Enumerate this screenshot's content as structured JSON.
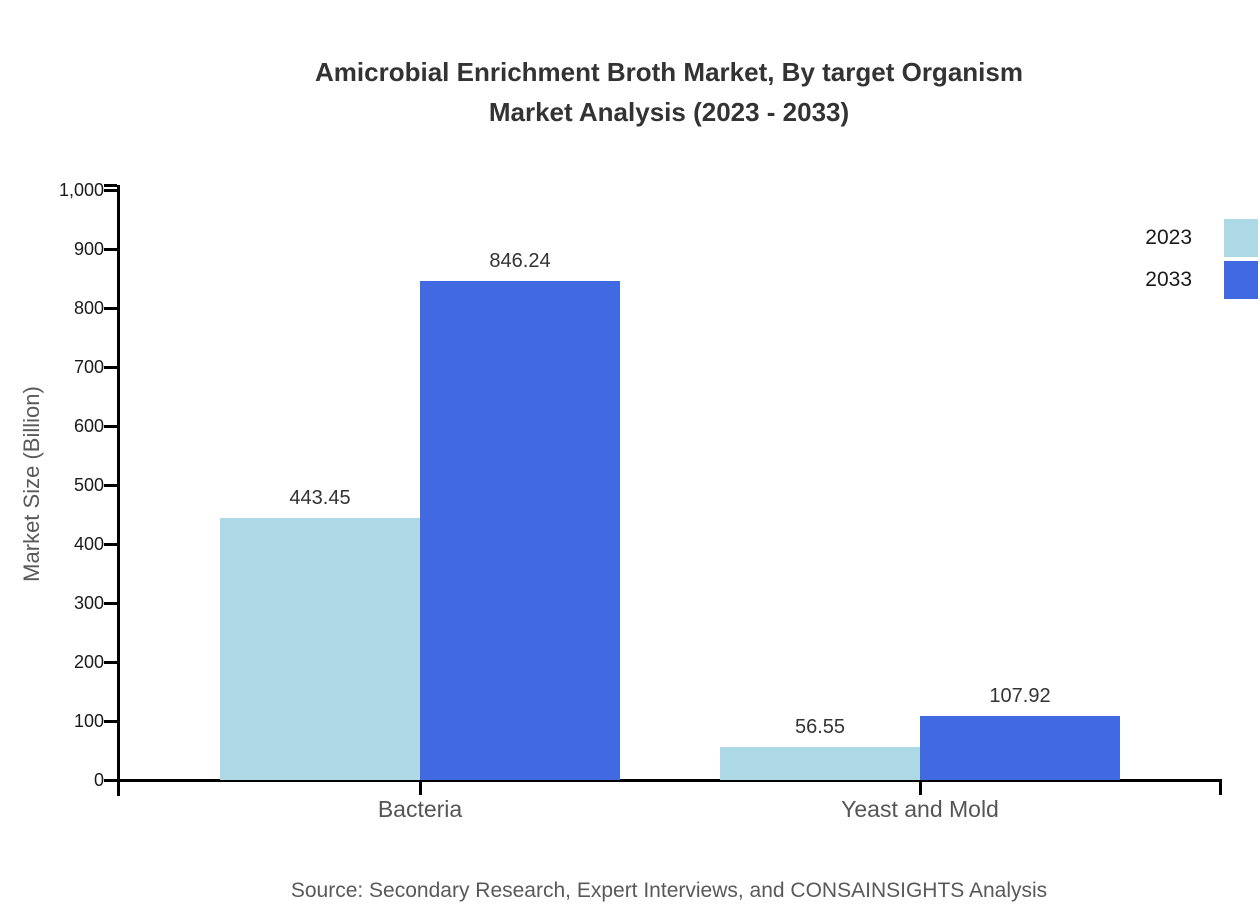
{
  "title": {
    "line1": "Amicrobial Enrichment Broth Market, By target Organism",
    "line2": "Market Analysis (2023 - 2033)"
  },
  "source_note": "Source: Secondary Research, Expert Interviews, and CONSAINSIGHTS Analysis",
  "colors": {
    "series_2023": "#ADD8E6",
    "series_2033": "#4169E1",
    "axis": "#000000",
    "title_text": "#333333",
    "tick_text": "#1a1a1a",
    "category_text": "#555555",
    "muted_text": "#595959"
  },
  "chart_data": {
    "type": "bar",
    "title": "Amicrobial Enrichment Broth Market, By target Organism Market Analysis (2023 - 2033)",
    "categories": [
      "Bacteria",
      "Yeast and Mold"
    ],
    "series": [
      {
        "name": "2023",
        "color": "#ADD8E6",
        "values": [
          443.45,
          56.55
        ],
        "value_labels": [
          "443.45",
          "56.55"
        ]
      },
      {
        "name": "2033",
        "color": "#4169E1",
        "values": [
          846.24,
          107.92
        ],
        "value_labels": [
          "846.24",
          "107.92"
        ]
      }
    ],
    "xlabel": "",
    "ylabel": "Market Size (Billion)",
    "ylim": [
      0,
      1000
    ],
    "ytick_values": [
      0,
      100,
      200,
      300,
      400,
      500,
      600,
      700,
      800,
      900,
      1000
    ],
    "ytick_labels": [
      "0",
      "100",
      "200",
      "300",
      "400",
      "500",
      "600",
      "700",
      "800",
      "900",
      "1,000"
    ],
    "grid": false,
    "legend_position": "top-right"
  }
}
